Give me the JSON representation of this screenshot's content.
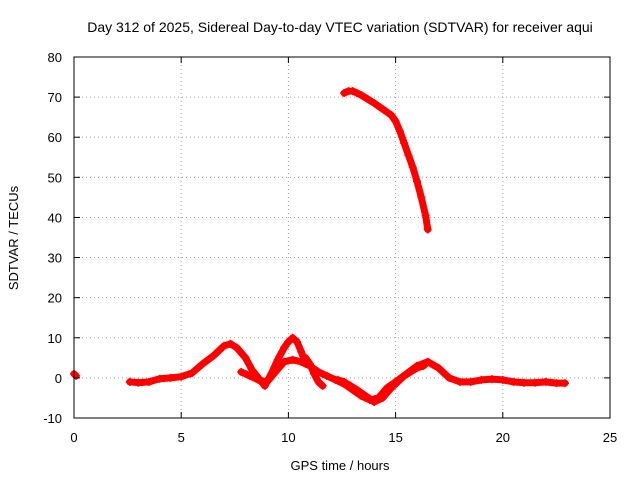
{
  "chart_data": {
    "type": "scatter",
    "title": "Day 312 of 2025, Sidereal Day-to-day VTEC variation (SDTVAR) for receiver aqui",
    "xlabel": "GPS time / hours",
    "ylabel": "SDTVAR / TECUs",
    "xlim": [
      0,
      25
    ],
    "ylim": [
      -10,
      80
    ],
    "xticks": [
      0,
      5,
      10,
      15,
      20,
      25
    ],
    "yticks": [
      -10,
      0,
      10,
      20,
      30,
      40,
      50,
      60,
      70,
      80
    ],
    "grid": true,
    "legend": "none",
    "marker": "plus",
    "series": [
      {
        "name": "SDTVAR",
        "color": "#ff0000",
        "segments": [
          {
            "x": [
              0.0,
              0.1
            ],
            "y": [
              1.0,
              0.5
            ]
          },
          {
            "x": [
              2.6,
              3.0,
              3.5,
              4.0,
              4.5,
              5.0,
              5.5,
              6.0,
              6.5,
              7.0,
              7.3,
              7.6,
              8.0,
              8.3,
              8.6,
              8.9,
              9.2,
              9.5,
              9.8,
              10.0,
              10.2,
              10.4,
              10.6,
              10.8
            ],
            "y": [
              -1.0,
              -1.2,
              -1.0,
              -0.2,
              0.0,
              0.3,
              1.2,
              3.5,
              5.5,
              8.0,
              8.5,
              7.5,
              5.0,
              2.0,
              0.0,
              -2.0,
              1.0,
              4.5,
              7.5,
              9.0,
              10.0,
              9.0,
              6.5,
              3.5
            ]
          },
          {
            "x": [
              7.8,
              8.2,
              8.6,
              9.0,
              9.4,
              9.8,
              10.2,
              10.6,
              11.0,
              11.4,
              11.8,
              12.2,
              12.6,
              13.0,
              13.4,
              13.8,
              14.2,
              14.6,
              15.0,
              15.5,
              16.0,
              16.5,
              17.0,
              17.5,
              18.0,
              18.5,
              19.0,
              19.5,
              20.0,
              20.5,
              21.0,
              21.5,
              22.0,
              22.5,
              22.9
            ],
            "y": [
              1.5,
              0.5,
              -0.5,
              -1.0,
              1.5,
              4.0,
              4.5,
              4.0,
              3.0,
              1.5,
              0.5,
              -0.5,
              -1.5,
              -3.0,
              -4.5,
              -5.5,
              -5.0,
              -2.5,
              -1.0,
              1.0,
              3.0,
              4.0,
              2.5,
              0.0,
              -1.0,
              -1.0,
              -0.5,
              -0.3,
              -0.5,
              -1.0,
              -1.2,
              -1.2,
              -1.0,
              -1.3,
              -1.3
            ]
          },
          {
            "x": [
              10.8,
              11.0,
              11.2,
              11.4,
              11.6
            ],
            "y": [
              5.0,
              3.5,
              1.0,
              -1.0,
              -2.0
            ]
          },
          {
            "x": [
              12.3,
              12.6,
              12.9,
              13.2,
              13.6,
              14.0,
              14.4,
              14.8,
              15.1,
              15.4,
              15.7,
              16.0,
              16.3,
              16.5
            ],
            "y": [
              -0.5,
              -1.0,
              -2.0,
              -3.0,
              -4.5,
              -6.0,
              -5.0,
              -2.5,
              -1.0,
              0.5,
              1.5,
              2.5,
              3.0,
              4.0
            ]
          },
          {
            "x": [
              12.6,
              12.8,
              13.0,
              13.2,
              13.4,
              13.7,
              14.0,
              14.4,
              14.8,
              15.0,
              15.2,
              15.4,
              15.6,
              15.8,
              16.0,
              16.2,
              16.4,
              16.5
            ],
            "y": [
              71.0,
              71.5,
              71.5,
              71.0,
              70.5,
              69.5,
              68.5,
              67.0,
              65.5,
              64.0,
              61.5,
              58.5,
              55.5,
              52.5,
              49.0,
              45.0,
              40.5,
              37.0
            ]
          }
        ]
      }
    ]
  }
}
